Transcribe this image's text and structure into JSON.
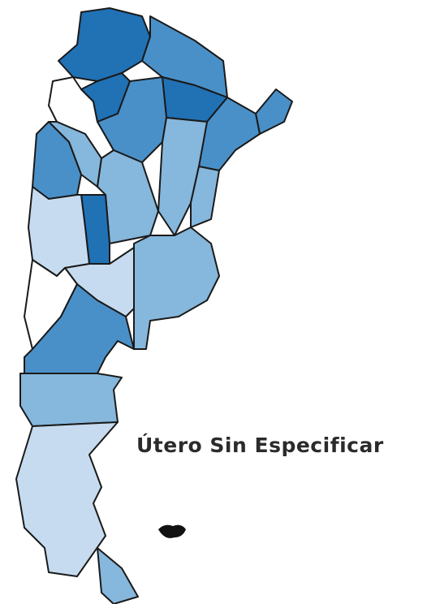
{
  "title": "Útero Sin Especificar"
}
